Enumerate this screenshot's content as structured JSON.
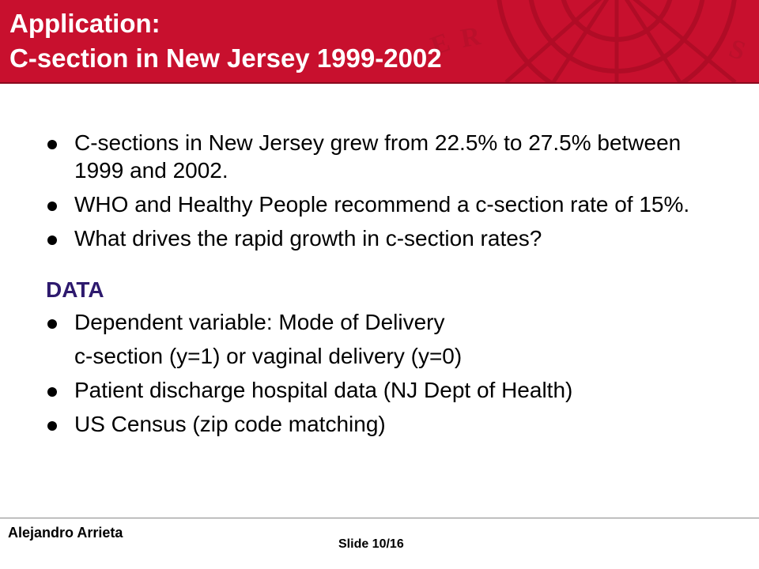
{
  "slide": {
    "title_line1": "Application:",
    "title_line2": "C-section in New Jersey 1999-2002",
    "bullets": [
      {
        "text": "C-sections in New Jersey grew from 22.5% to 27.5% between 1999 and 2002."
      },
      {
        "text": "WHO and Healthy People recommend a c-section rate of 15%."
      },
      {
        "text": "What drives the rapid growth in c-section rates?"
      }
    ],
    "data_section": {
      "heading": "DATA",
      "item1": "Dependent variable: Mode of Delivery",
      "item1_sub": "c-section (y=1) or vaginal delivery (y=0)",
      "item2": "Patient discharge hospital data (NJ Dept of Health)",
      "item3": "US Census (zip code matching)"
    }
  },
  "footer": {
    "author": "Alejandro Arrieta",
    "slide_number": "Slide 10/16"
  },
  "colors": {
    "header_bg": "#c8102e",
    "heading_purple": "#2e1a6e"
  }
}
